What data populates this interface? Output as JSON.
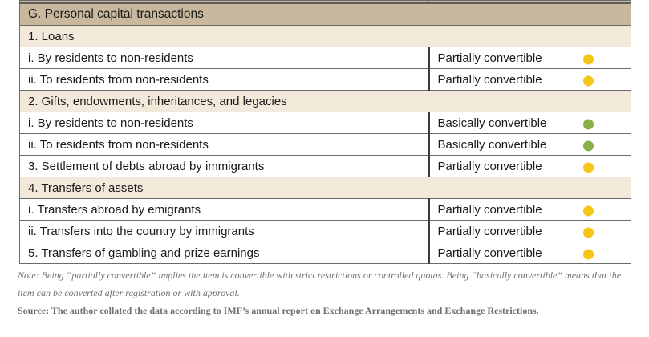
{
  "table": {
    "section_header": "G. Personal capital transactions",
    "rows": [
      {
        "type": "sub",
        "label": "1. Loans"
      },
      {
        "type": "item",
        "label": "i. By residents to non-residents",
        "status": "Partially convertible",
        "level": "partial"
      },
      {
        "type": "item",
        "label": "ii. To residents from non-residents",
        "status": "Partially convertible",
        "level": "partial"
      },
      {
        "type": "sub",
        "label": "2. Gifts, endowments, inheritances, and legacies"
      },
      {
        "type": "item",
        "label": "i. By residents to non-residents",
        "status": "Basically convertible",
        "level": "basic"
      },
      {
        "type": "item",
        "label": "ii. To residents from non-residents",
        "status": "Basically convertible",
        "level": "basic"
      },
      {
        "type": "item",
        "label": "3. Settlement of debts abroad by immigrants",
        "status": "Partially convertible",
        "level": "partial"
      },
      {
        "type": "sub",
        "label": "4. Transfers of assets"
      },
      {
        "type": "item",
        "label": "i. Transfers abroad by emigrants",
        "status": "Partially convertible",
        "level": "partial"
      },
      {
        "type": "item",
        "label": "ii. Transfers into the country by immigrants",
        "status": "Partially convertible",
        "level": "partial"
      },
      {
        "type": "item",
        "label": "5. Transfers of gambling and prize earnings",
        "status": "Partially convertible",
        "level": "partial"
      }
    ]
  },
  "colors": {
    "header_bg": "#c9b89d",
    "subheader_bg": "#f3e9db",
    "partial_dot": "#f5c518",
    "basic_dot": "#8ab04a"
  },
  "note": "Note: Being “partially convertible” implies the item is convertible with strict restrictions or controlled quotas. Being “basically convertible” means that the item can be converted after registration or with approval.",
  "source": "Source: The author collated the data according to IMF’s annual report on Exchange Arrangements and Exchange Restrictions."
}
